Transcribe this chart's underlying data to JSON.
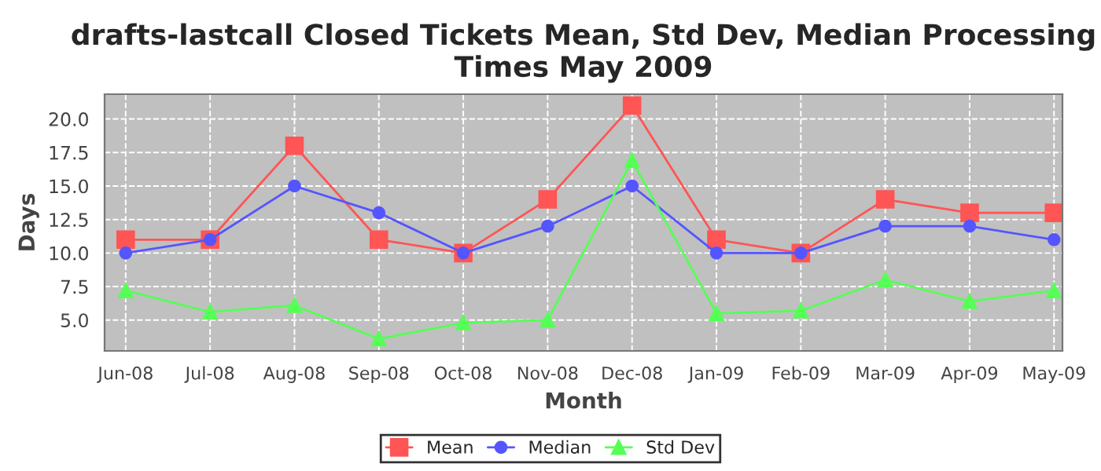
{
  "chart_data": {
    "type": "line",
    "title": "drafts-lastcall Closed Tickets Mean, Std Dev, Median Processing Times May 2009",
    "xlabel": "Month",
    "ylabel": "Days",
    "categories": [
      "Jun-08",
      "Jul-08",
      "Aug-08",
      "Sep-08",
      "Oct-08",
      "Nov-08",
      "Dec-08",
      "Jan-09",
      "Feb-09",
      "Mar-09",
      "Apr-09",
      "May-09"
    ],
    "series": [
      {
        "name": "Mean",
        "color": "#ff5555",
        "marker": "square",
        "values": [
          11,
          11,
          18,
          11,
          10,
          14,
          21,
          11,
          10,
          14,
          13,
          13
        ]
      },
      {
        "name": "Median",
        "color": "#5555ff",
        "marker": "circle",
        "values": [
          10,
          11,
          15,
          13,
          10,
          12,
          15,
          10,
          10,
          12,
          12,
          11
        ]
      },
      {
        "name": "Std Dev",
        "color": "#55ff55",
        "marker": "triangle",
        "values": [
          7.2,
          5.6,
          6.1,
          3.6,
          4.8,
          5.0,
          16.9,
          5.5,
          5.7,
          8.0,
          6.4,
          7.2
        ]
      }
    ],
    "ylim": [
      2.7,
      21.85
    ],
    "yticks": [
      {
        "value": 5,
        "label": "5.0"
      },
      {
        "value": 7.5,
        "label": "7.5"
      },
      {
        "value": 10,
        "label": "10.0"
      },
      {
        "value": 12.5,
        "label": "12.5"
      },
      {
        "value": 15,
        "label": "15.0"
      },
      {
        "value": 17.5,
        "label": "17.5"
      },
      {
        "value": 20,
        "label": "20.0"
      }
    ],
    "grid": true,
    "legend": "bottom",
    "line_style": "solid"
  }
}
